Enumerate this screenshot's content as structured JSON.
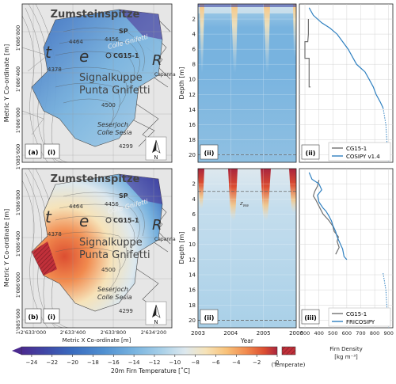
{
  "colors": {
    "cmap": [
      "#4b2a8f",
      "#3f4aa8",
      "#3a6cbf",
      "#4f8fd0",
      "#78b3df",
      "#a9d0e8",
      "#dde8ee",
      "#f6e3b9",
      "#f8c27a",
      "#f18a4e",
      "#dc4e31",
      "#a9253e"
    ],
    "temperate": "#c0303a",
    "cg_line": "#707070",
    "model_line": "#2f80c0"
  },
  "maps": {
    "title": "Zumsteinspitze",
    "ylabel": "Metric Y Co-ordinate [m]",
    "xlabel": "Metric X Co-ordinate [m]",
    "yticks": [
      "1'086'800",
      "1'086'400",
      "1'086'000",
      "1'085'600"
    ],
    "xticks": [
      "2'633'000",
      "2'633'400",
      "2'633'800",
      "2'634'200"
    ],
    "sp": "SP",
    "colle_gnifetti": "Colle Gnifetti",
    "cg15": "CG15-1",
    "signalkuppe": "Signalkuppe",
    "punta_gnifetti": "Punta Gnifetti",
    "seserjoch": "Seserjoch",
    "colle_sesia": "Colle Sesia",
    "capanna": "Capanna",
    "c4464": "4464",
    "c4456": "4456",
    "c4378": "4378",
    "c4500": "4500",
    "c4299": "4299",
    "north": "N",
    "glyph_t": "t",
    "glyph_e": "e",
    "glyph_r": "R",
    "top_label": "(a)",
    "top_panel": "(i)",
    "bottom_label": "(b)",
    "bottom_panel": "(i)"
  },
  "depth_panels": {
    "ylabel": "Depth [m]",
    "xlabel": "Year",
    "top_panel": "(ii)",
    "bottom_panel": "(ii)",
    "bottom_ann": "z",
    "bottom_ann_sub": "wa"
  },
  "chart_data": [
    {
      "type": "heatmap",
      "panel": "(a)(ii)",
      "x_ticks": [
        2003,
        2004,
        2005,
        2006
      ],
      "y_ticks": [
        2,
        4,
        6,
        8,
        10,
        12,
        14,
        16,
        18,
        20
      ],
      "xlim": [
        2003,
        2006
      ],
      "ylim": [
        0,
        21
      ],
      "dashed_depth": 20
    },
    {
      "type": "heatmap",
      "panel": "(b)(ii)",
      "x_ticks": [
        2003,
        2004,
        2005,
        2006
      ],
      "y_ticks": [
        2,
        4,
        6,
        8,
        10,
        12,
        14,
        16,
        18,
        20
      ],
      "xlim": [
        2003,
        2006
      ],
      "ylim": [
        0,
        21
      ],
      "dashed_depths": [
        3,
        20
      ]
    },
    {
      "type": "line",
      "panel": "(a)(iii)",
      "xlim": [
        260,
        930
      ],
      "x_ticks": [
        300,
        400,
        500,
        600,
        700,
        800,
        900
      ],
      "series": [
        {
          "name": "CG15-1",
          "points": [
            [
              325,
              2
            ],
            [
              325,
              4
            ],
            [
              320,
              5
            ],
            [
              300,
              5
            ],
            [
              300,
              7.2
            ],
            [
              330,
              7.2
            ],
            [
              330,
              11
            ],
            [
              340,
              11
            ]
          ]
        },
        {
          "name": "COSIPY v1.4",
          "points": [
            [
              330,
              0.5
            ],
            [
              360,
              1.5
            ],
            [
              420,
              2.5
            ],
            [
              480,
              3.2
            ],
            [
              530,
              4
            ],
            [
              570,
              5
            ],
            [
              610,
              6
            ],
            [
              640,
              7
            ],
            [
              670,
              8
            ],
            [
              700,
              8.5
            ],
            [
              730,
              9
            ],
            [
              760,
              10
            ],
            [
              790,
              11
            ],
            [
              810,
              12
            ],
            [
              840,
              13
            ],
            [
              860,
              13.8
            ]
          ]
        }
      ],
      "legend": "lower right"
    },
    {
      "type": "line",
      "panel": "(b)(iii)",
      "xlim": [
        260,
        930
      ],
      "x_ticks": [
        300,
        400,
        500,
        600,
        700,
        800,
        900
      ],
      "series": [
        {
          "name": "CG15-1",
          "points": [
            [
              400,
              1.5
            ],
            [
              390,
              2.3
            ],
            [
              370,
              3
            ],
            [
              360,
              3.6
            ],
            [
              380,
              4.2
            ],
            [
              410,
              5.3
            ],
            [
              430,
              6
            ],
            [
              470,
              6.8
            ],
            [
              500,
              7.6
            ],
            [
              510,
              8.3
            ],
            [
              540,
              9
            ],
            [
              530,
              9.6
            ],
            [
              545,
              10.4
            ],
            [
              520,
              11.3
            ]
          ]
        },
        {
          "name": "FRICOSIPY",
          "points": [
            [
              330,
              0.5
            ],
            [
              350,
              1.4
            ],
            [
              400,
              2
            ],
            [
              420,
              2.8
            ],
            [
              390,
              3.5
            ],
            [
              400,
              4.4
            ],
            [
              430,
              5.2
            ],
            [
              450,
              5.6
            ],
            [
              470,
              6.2
            ],
            [
              490,
              6.9
            ],
            [
              500,
              7.5
            ],
            [
              520,
              8.3
            ],
            [
              530,
              9
            ],
            [
              550,
              9.8
            ],
            [
              570,
              10.6
            ],
            [
              580,
              11.6
            ],
            [
              600,
              12
            ]
          ]
        }
      ],
      "legend": "lower right"
    }
  ],
  "colorbar": {
    "label": "20m Firn Temperature [˚C]",
    "ticks": [
      "−24",
      "−22",
      "−20",
      "−18",
      "−16",
      "−14",
      "−12",
      "−10",
      "−8",
      "−6",
      "−4",
      "−2",
      "0"
    ],
    "range": [
      -25,
      0
    ],
    "temperate_label": "(Temperate)"
  },
  "density_axis": {
    "ticks": [
      "300",
      "400",
      "500",
      "600",
      "700",
      "800",
      "900"
    ],
    "label": "Firn Density",
    "unit": "[kg m⁻³]"
  }
}
